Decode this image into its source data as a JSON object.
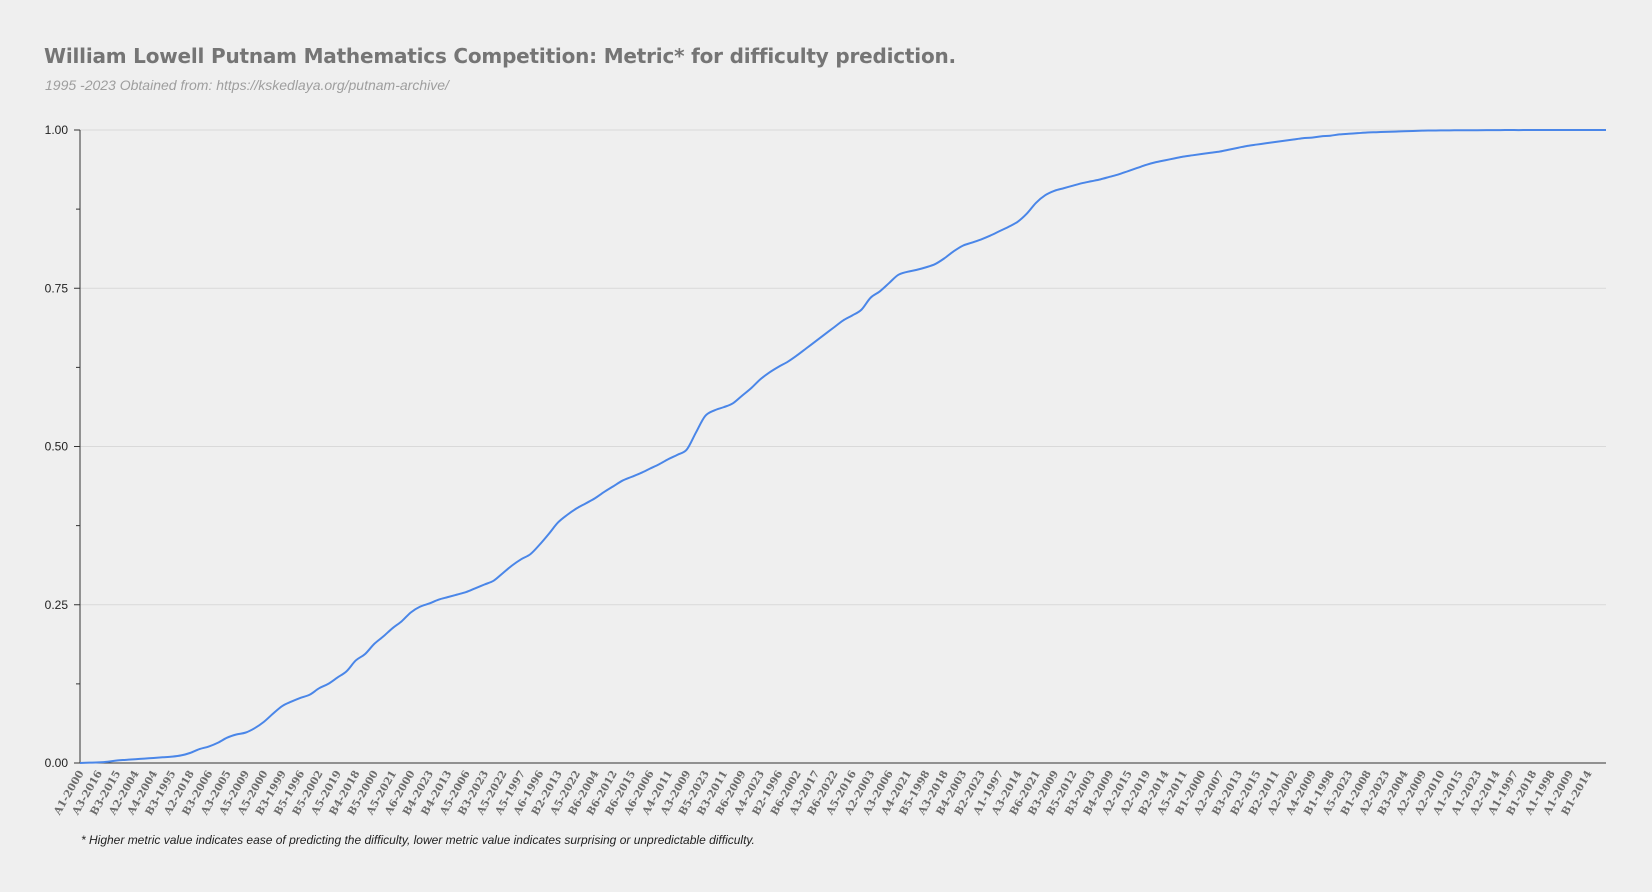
{
  "chart_data": {
    "type": "line",
    "title": "William Lowell Putnam Mathematics Competition: Metric* for difficulty prediction.",
    "subtitle": "1995 -2023 Obtained from: https://kskedlaya.org/putnam-archive/",
    "footnote": "* Higher metric value indicates ease of predicting the difficulty, lower metric value indicates surprising or unpredictable difficulty.",
    "ylim": [
      0,
      1
    ],
    "y_ticks": [
      "0.00",
      "0.25",
      "0.50",
      "0.75",
      "1.00"
    ],
    "grid": true,
    "legend": "none",
    "line_color": "#4a86e8",
    "categories": [
      "A1-2000",
      "A3-2016",
      "B3-2015",
      "A2-2004",
      "A4-2004",
      "B3-1995",
      "A2-2018",
      "B3-2006",
      "A3-2005",
      "A5-2009",
      "A5-2000",
      "B3-1999",
      "B5-1996",
      "B5-2002",
      "A5-2019",
      "B4-2018",
      "B5-2000",
      "A5-2021",
      "A6-2000",
      "B4-2023",
      "B4-2013",
      "A5-2006",
      "B3-2023",
      "A5-2022",
      "A5-1997",
      "A6-1996",
      "B2-2013",
      "A5-2022",
      "B6-2004",
      "B6-2012",
      "B6-2015",
      "A6-2006",
      "A4-2011",
      "A3-2009",
      "B5-2023",
      "B3-2011",
      "B6-2009",
      "A4-2023",
      "B2-1996",
      "B6-2002",
      "A3-2017",
      "B6-2022",
      "A5-2016",
      "A2-2003",
      "A3-2006",
      "A4-2021",
      "B5-1998",
      "A3-2018",
      "B4-2003",
      "B2-2023",
      "A1-1997",
      "A3-2014",
      "B6-2021",
      "B3-2009",
      "B5-2012",
      "B3-2003",
      "B4-2009",
      "A2-2015",
      "A2-2019",
      "B2-2014",
      "A5-2011",
      "B1-2000",
      "A2-2007",
      "B3-2013",
      "B2-2015",
      "B2-2011",
      "A2-2002",
      "A4-2009",
      "B1-1998",
      "A5-2023",
      "B1-2008",
      "A2-2023",
      "B3-2004",
      "A2-2009",
      "A2-2010",
      "A1-2015",
      "A1-2023",
      "A2-2014",
      "A1-1997",
      "B1-2018",
      "A1-1998",
      "A1-2009",
      "B1-2014"
    ],
    "x": [
      0,
      1,
      2,
      3,
      4,
      5,
      6,
      7,
      8,
      9,
      10,
      11,
      12,
      13,
      14,
      15,
      16,
      17,
      18,
      19,
      20,
      21,
      22,
      23,
      24,
      25,
      26,
      27,
      28,
      29,
      30,
      31,
      32,
      33,
      34,
      35,
      36,
      37,
      38,
      39,
      40,
      41,
      42,
      43,
      44,
      45,
      46,
      47,
      48,
      49,
      50,
      51,
      52,
      53,
      54,
      55,
      56,
      57,
      58,
      59,
      60,
      61,
      62,
      63,
      64,
      65,
      66,
      67,
      68,
      69,
      70,
      71,
      72,
      73,
      74,
      75,
      76,
      77,
      78,
      79,
      80,
      81,
      82,
      83,
      84,
      85,
      86,
      87,
      88,
      89,
      90,
      91,
      92,
      93,
      94,
      95,
      96,
      97,
      98,
      99,
      100,
      101,
      102,
      103,
      104,
      105,
      106,
      107,
      108,
      109,
      110,
      111,
      112,
      113,
      114,
      115,
      116,
      117,
      118,
      119,
      120,
      121,
      122,
      123,
      124,
      125,
      126,
      127,
      128,
      129,
      130,
      131,
      132,
      133,
      134,
      135,
      136,
      137,
      138,
      139,
      140,
      141,
      142,
      143,
      144,
      145,
      146,
      147,
      148,
      149,
      150,
      151,
      152,
      153,
      154,
      155,
      156,
      157,
      158,
      159,
      160,
      161,
      162,
      163,
      164,
      165,
      166
    ],
    "values": [
      0.0,
      0.0005,
      0.001,
      0.002,
      0.004,
      0.005,
      0.006,
      0.007,
      0.008,
      0.009,
      0.01,
      0.012,
      0.016,
      0.022,
      0.026,
      0.032,
      0.04,
      0.045,
      0.048,
      0.055,
      0.065,
      0.078,
      0.09,
      0.097,
      0.103,
      0.108,
      0.118,
      0.125,
      0.135,
      0.145,
      0.162,
      0.172,
      0.188,
      0.2,
      0.213,
      0.224,
      0.238,
      0.247,
      0.252,
      0.258,
      0.262,
      0.266,
      0.27,
      0.276,
      0.282,
      0.288,
      0.3,
      0.312,
      0.322,
      0.33,
      0.345,
      0.362,
      0.38,
      0.392,
      0.402,
      0.41,
      0.418,
      0.428,
      0.437,
      0.446,
      0.452,
      0.458,
      0.465,
      0.472,
      0.48,
      0.487,
      0.495,
      0.522,
      0.548,
      0.557,
      0.562,
      0.568,
      0.58,
      0.592,
      0.606,
      0.617,
      0.626,
      0.634,
      0.644,
      0.655,
      0.666,
      0.677,
      0.688,
      0.699,
      0.707,
      0.716,
      0.735,
      0.745,
      0.758,
      0.771,
      0.776,
      0.779,
      0.783,
      0.788,
      0.797,
      0.808,
      0.817,
      0.822,
      0.827,
      0.833,
      0.84,
      0.847,
      0.855,
      0.868,
      0.885,
      0.897,
      0.904,
      0.908,
      0.912,
      0.916,
      0.919,
      0.922,
      0.926,
      0.93,
      0.935,
      0.94,
      0.945,
      0.949,
      0.952,
      0.955,
      0.958,
      0.96,
      0.962,
      0.964,
      0.966,
      0.969,
      0.972,
      0.975,
      0.977,
      0.979,
      0.981,
      0.983,
      0.985,
      0.987,
      0.988,
      0.99,
      0.991,
      0.993,
      0.994,
      0.995,
      0.996,
      0.9965,
      0.997,
      0.9975,
      0.998,
      0.9985,
      0.999,
      0.9992,
      0.9994,
      0.9995,
      0.9996,
      0.9997,
      0.9997,
      0.9998,
      0.9998,
      0.9999,
      0.9999,
      0.9999,
      1.0,
      1.0,
      1.0,
      1.0,
      1.0,
      1.0,
      1.0,
      1.0,
      1.0
    ]
  }
}
